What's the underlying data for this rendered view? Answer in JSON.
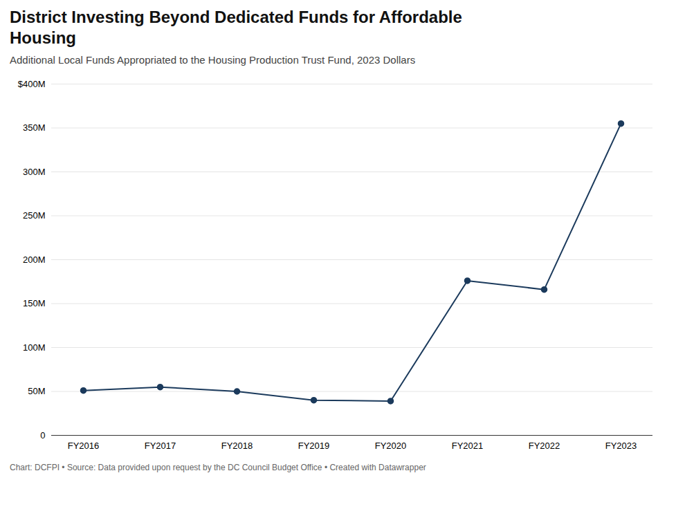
{
  "chart_data": {
    "type": "line",
    "title": "District Investing Beyond Dedicated Funds for Affordable\nHousing",
    "subtitle": "Additional Local Funds Appropriated to the Housing Production Trust Fund, 2023 Dollars",
    "footnote": "Chart: DCFPI • Source: Data provided upon request by the DC Council Budget Office • Created with Datawrapper",
    "categories": [
      "FY2016",
      "FY2017",
      "FY2018",
      "FY2019",
      "FY2020",
      "FY2021",
      "FY2022",
      "FY2023"
    ],
    "values": [
      51,
      55,
      50,
      40,
      39,
      176,
      166,
      355
    ],
    "color": "#1b3a5c",
    "marker": "circle",
    "ylim": [
      0,
      400
    ],
    "yticks": [
      0,
      {
        "value": 50,
        "label": "50M"
      },
      {
        "value": 100,
        "label": "100M"
      },
      {
        "value": 150,
        "label": "150M"
      },
      {
        "value": 200,
        "label": "200M"
      },
      {
        "value": 250,
        "label": "250M"
      },
      {
        "value": 300,
        "label": "300M"
      },
      {
        "value": 350,
        "label": "350M"
      },
      {
        "value": 400,
        "label": "$400M"
      }
    ],
    "grid": true
  }
}
